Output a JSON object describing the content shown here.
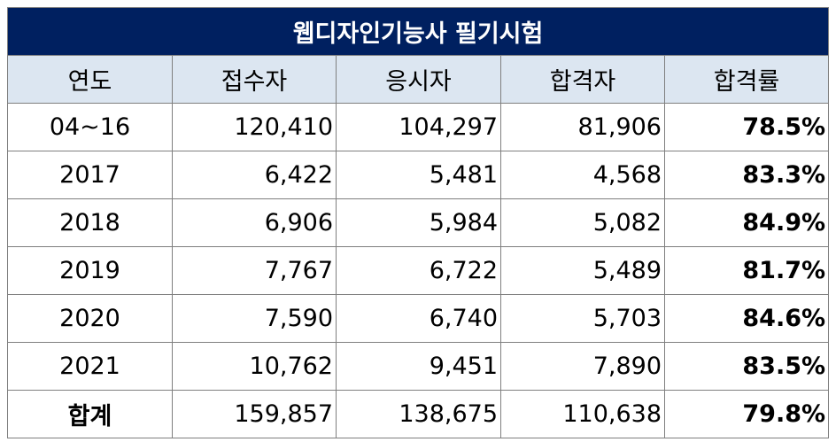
{
  "title": "웹디자인기능사 필기시험",
  "columns": [
    "연도",
    "접수자",
    "응시자",
    "합격자",
    "합격률"
  ],
  "rows": [
    {
      "year": "04~16",
      "registered": "120,410",
      "examinees": "104,297",
      "passed": "81,906",
      "rate": "78.5%"
    },
    {
      "year": "2017",
      "registered": "6,422",
      "examinees": "5,481",
      "passed": "4,568",
      "rate": "83.3%"
    },
    {
      "year": "2018",
      "registered": "6,906",
      "examinees": "5,984",
      "passed": "5,082",
      "rate": "84.9%"
    },
    {
      "year": "2019",
      "registered": "7,767",
      "examinees": "6,722",
      "passed": "5,489",
      "rate": "81.7%"
    },
    {
      "year": "2020",
      "registered": "7,590",
      "examinees": "6,740",
      "passed": "5,703",
      "rate": "84.6%"
    },
    {
      "year": "2021",
      "registered": "10,762",
      "examinees": "9,451",
      "passed": "7,890",
      "rate": "83.5%"
    }
  ],
  "total": {
    "label": "합계",
    "registered": "159,857",
    "examinees": "138,675",
    "passed": "110,638",
    "rate": "79.8%"
  },
  "colors": {
    "title_bg": "#002060",
    "header_bg": "#dce6f1",
    "border": "#7f7f7f"
  }
}
